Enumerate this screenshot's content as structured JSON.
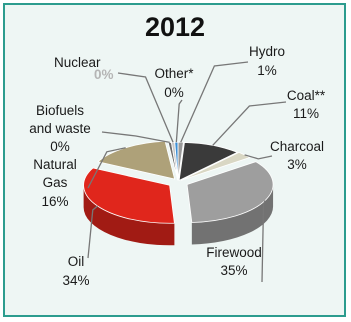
{
  "chart_data": {
    "type": "pie",
    "title": "2012",
    "slices": [
      {
        "line1": "Hydro",
        "line2": "1%",
        "value": 1,
        "color": "#9a9a9a"
      },
      {
        "line1": "Coal**",
        "line2": "11%",
        "value": 11,
        "color": "#3a3a3a"
      },
      {
        "line1": "Charcoal",
        "line2": "3%",
        "value": 3,
        "color": "#d9d7c4"
      },
      {
        "line1": "Firewood",
        "line2": "35%",
        "value": 35,
        "color": "#9e9e9e"
      },
      {
        "line1": "Oil",
        "line2": "34%",
        "value": 34,
        "color": "#e0261c"
      },
      {
        "line1": "Natural",
        "line2": "Gas",
        "line3": "16%",
        "value": 16,
        "color": "#aea179"
      },
      {
        "line1": "Biofuels",
        "line2": "and waste",
        "line3": "0%",
        "value": 0,
        "color": "#6b6b6b"
      },
      {
        "line1": "Nuclear",
        "line2": "0%",
        "value": 0,
        "color": "#c8c8c8"
      },
      {
        "line1": "Other*",
        "line2": "0%",
        "value": 0,
        "color": "#3b8fd6"
      }
    ]
  }
}
